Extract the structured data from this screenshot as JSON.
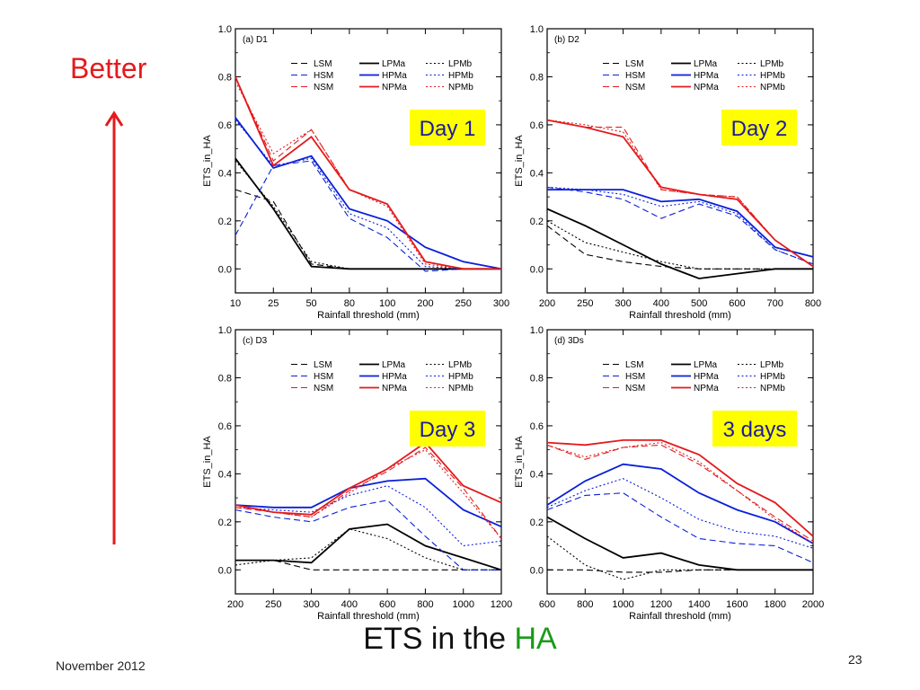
{
  "slide": {
    "better_label": "Better",
    "title_prefix": "ETS in the ",
    "title_highlight": "HA",
    "date": "November 2012",
    "page_number": "23",
    "colors": {
      "better": "#e41a1c",
      "title_highlight": "#1a9a1a",
      "badge_fill": "#ffff00",
      "badge_text": "#1a1aa0"
    }
  },
  "chart_data": [
    {
      "type": "line",
      "panel_label": "(a) D1",
      "badge": "Day 1",
      "xlabel": "Rainfall threshold (mm)",
      "ylabel": "ETS_in_HA",
      "categories": [
        "10",
        "25",
        "50",
        "80",
        "100",
        "200",
        "250",
        "300"
      ],
      "ylim": [
        -0.1,
        1.0
      ],
      "yticks": [
        "0.0",
        "0.2",
        "0.4",
        "0.6",
        "0.8",
        "1.0"
      ],
      "series": [
        {
          "name": "LSM",
          "color": "#000000",
          "style": "dash",
          "values": [
            0.33,
            0.28,
            0.02,
            0.0,
            0.0,
            0.0,
            0.0,
            0.0
          ]
        },
        {
          "name": "LPMa",
          "color": "#000000",
          "style": "solid",
          "values": [
            0.46,
            0.25,
            0.01,
            0.0,
            0.0,
            0.0,
            0.0,
            0.0
          ]
        },
        {
          "name": "LPMb",
          "color": "#000000",
          "style": "dot",
          "values": [
            0.45,
            0.26,
            0.03,
            0.0,
            0.0,
            0.0,
            0.0,
            0.0
          ]
        },
        {
          "name": "HSM",
          "color": "#0a1fd8",
          "style": "dash",
          "values": [
            0.14,
            0.43,
            0.45,
            0.21,
            0.13,
            -0.01,
            0.0,
            0.0
          ]
        },
        {
          "name": "HPMa",
          "color": "#0a1fd8",
          "style": "solid",
          "values": [
            0.63,
            0.42,
            0.47,
            0.25,
            0.2,
            0.09,
            0.03,
            0.0
          ]
        },
        {
          "name": "HPMb",
          "color": "#0a1fd8",
          "style": "dot",
          "values": [
            0.62,
            0.43,
            0.46,
            0.23,
            0.17,
            0.01,
            0.0,
            0.0
          ]
        },
        {
          "name": "NSM",
          "color": "#e41a1c",
          "style": "dash",
          "values": [
            0.8,
            0.45,
            0.58,
            0.33,
            0.27,
            0.03,
            0.0,
            0.0
          ]
        },
        {
          "name": "NPMa",
          "color": "#e41a1c",
          "style": "solid",
          "values": [
            0.8,
            0.43,
            0.55,
            0.33,
            0.27,
            0.03,
            0.0,
            0.0
          ]
        },
        {
          "name": "NPMb",
          "color": "#e41a1c",
          "style": "dot",
          "values": [
            0.78,
            0.48,
            0.58,
            0.33,
            0.26,
            0.02,
            0.0,
            0.0
          ]
        }
      ]
    },
    {
      "type": "line",
      "panel_label": "(b) D2",
      "badge": "Day 2",
      "xlabel": "Rainfall threshold (mm)",
      "ylabel": "ETS_in_HA",
      "categories": [
        "200",
        "250",
        "300",
        "400",
        "500",
        "600",
        "700",
        "800"
      ],
      "ylim": [
        -0.1,
        1.0
      ],
      "yticks": [
        "0.0",
        "0.2",
        "0.4",
        "0.6",
        "0.8",
        "1.0"
      ],
      "series": [
        {
          "name": "LSM",
          "color": "#000000",
          "style": "dash",
          "values": [
            0.18,
            0.06,
            0.03,
            0.01,
            0.0,
            0.0,
            0.0,
            0.0
          ]
        },
        {
          "name": "LPMa",
          "color": "#000000",
          "style": "solid",
          "values": [
            0.25,
            0.18,
            0.1,
            0.02,
            -0.04,
            -0.02,
            0.0,
            0.0
          ]
        },
        {
          "name": "LPMb",
          "color": "#000000",
          "style": "dot",
          "values": [
            0.2,
            0.11,
            0.07,
            0.03,
            0.0,
            0.0,
            0.0,
            0.0
          ]
        },
        {
          "name": "HSM",
          "color": "#0a1fd8",
          "style": "dash",
          "values": [
            0.34,
            0.32,
            0.29,
            0.21,
            0.27,
            0.22,
            0.08,
            0.02
          ]
        },
        {
          "name": "HPMa",
          "color": "#0a1fd8",
          "style": "solid",
          "values": [
            0.33,
            0.33,
            0.33,
            0.28,
            0.29,
            0.24,
            0.09,
            0.05
          ]
        },
        {
          "name": "HPMb",
          "color": "#0a1fd8",
          "style": "dot",
          "values": [
            0.34,
            0.33,
            0.31,
            0.26,
            0.28,
            0.23,
            0.08,
            0.02
          ]
        },
        {
          "name": "NSM",
          "color": "#e41a1c",
          "style": "dash",
          "values": [
            0.62,
            0.59,
            0.59,
            0.33,
            0.31,
            0.3,
            0.12,
            0.01
          ]
        },
        {
          "name": "NPMa",
          "color": "#e41a1c",
          "style": "solid",
          "values": [
            0.62,
            0.59,
            0.55,
            0.34,
            0.31,
            0.29,
            0.12,
            0.01
          ]
        },
        {
          "name": "NPMb",
          "color": "#e41a1c",
          "style": "dot",
          "values": [
            0.62,
            0.6,
            0.57,
            0.33,
            0.31,
            0.3,
            0.12,
            0.01
          ]
        }
      ]
    },
    {
      "type": "line",
      "panel_label": "(c) D3",
      "badge": "Day 3",
      "xlabel": "Rainfall threshold (mm)",
      "ylabel": "ETS_in_HA",
      "categories": [
        "200",
        "250",
        "300",
        "400",
        "600",
        "800",
        "1000",
        "1200"
      ],
      "ylim": [
        -0.1,
        1.0
      ],
      "yticks": [
        "0.0",
        "0.2",
        "0.4",
        "0.6",
        "0.8",
        "1.0"
      ],
      "series": [
        {
          "name": "LSM",
          "color": "#000000",
          "style": "dash",
          "values": [
            0.04,
            0.04,
            0.0,
            0.0,
            0.0,
            0.0,
            0.0,
            0.0
          ]
        },
        {
          "name": "LPMa",
          "color": "#000000",
          "style": "solid",
          "values": [
            0.04,
            0.04,
            0.03,
            0.17,
            0.19,
            0.1,
            0.05,
            0.0
          ]
        },
        {
          "name": "LPMb",
          "color": "#000000",
          "style": "dot",
          "values": [
            0.02,
            0.04,
            0.05,
            0.17,
            0.13,
            0.05,
            0.0,
            0.0
          ]
        },
        {
          "name": "HSM",
          "color": "#0a1fd8",
          "style": "dash",
          "values": [
            0.25,
            0.22,
            0.2,
            0.26,
            0.29,
            0.14,
            0.0,
            0.0
          ]
        },
        {
          "name": "HPMa",
          "color": "#0a1fd8",
          "style": "solid",
          "values": [
            0.27,
            0.26,
            0.26,
            0.34,
            0.37,
            0.38,
            0.25,
            0.18
          ]
        },
        {
          "name": "HPMb",
          "color": "#0a1fd8",
          "style": "dot",
          "values": [
            0.26,
            0.25,
            0.24,
            0.31,
            0.35,
            0.26,
            0.1,
            0.12
          ]
        },
        {
          "name": "NSM",
          "color": "#e41a1c",
          "style": "dash",
          "values": [
            0.26,
            0.24,
            0.22,
            0.33,
            0.41,
            0.51,
            0.34,
            0.13
          ]
        },
        {
          "name": "NPMa",
          "color": "#e41a1c",
          "style": "solid",
          "values": [
            0.27,
            0.24,
            0.23,
            0.34,
            0.42,
            0.53,
            0.35,
            0.28
          ]
        },
        {
          "name": "NPMb",
          "color": "#e41a1c",
          "style": "dot",
          "values": [
            0.27,
            0.24,
            0.22,
            0.32,
            0.42,
            0.5,
            0.32,
            0.13
          ]
        }
      ]
    },
    {
      "type": "line",
      "panel_label": "(d) 3Ds",
      "badge": "3 days",
      "xlabel": "Rainfall threshold (mm)",
      "ylabel": "ETS_in_HA",
      "categories": [
        "600",
        "800",
        "1000",
        "1200",
        "1400",
        "1600",
        "1800",
        "2000"
      ],
      "ylim": [
        -0.1,
        1.0
      ],
      "yticks": [
        "0.0",
        "0.2",
        "0.4",
        "0.6",
        "0.8",
        "1.0"
      ],
      "series": [
        {
          "name": "LSM",
          "color": "#000000",
          "style": "dash",
          "values": [
            0.0,
            0.0,
            -0.01,
            -0.01,
            0.0,
            0.0,
            0.0,
            0.0
          ]
        },
        {
          "name": "LPMa",
          "color": "#000000",
          "style": "solid",
          "values": [
            0.22,
            0.13,
            0.05,
            0.07,
            0.02,
            0.0,
            0.0,
            0.0
          ]
        },
        {
          "name": "LPMb",
          "color": "#000000",
          "style": "dot",
          "values": [
            0.14,
            0.02,
            -0.04,
            0.0,
            0.0,
            0.0,
            0.0,
            0.0
          ]
        },
        {
          "name": "HSM",
          "color": "#0a1fd8",
          "style": "dash",
          "values": [
            0.25,
            0.31,
            0.32,
            0.22,
            0.13,
            0.11,
            0.1,
            0.03
          ]
        },
        {
          "name": "HPMa",
          "color": "#0a1fd8",
          "style": "solid",
          "values": [
            0.27,
            0.37,
            0.44,
            0.42,
            0.32,
            0.25,
            0.2,
            0.11
          ]
        },
        {
          "name": "HPMb",
          "color": "#0a1fd8",
          "style": "dot",
          "values": [
            0.26,
            0.33,
            0.38,
            0.3,
            0.21,
            0.16,
            0.14,
            0.09
          ]
        },
        {
          "name": "NSM",
          "color": "#e41a1c",
          "style": "dash",
          "values": [
            0.52,
            0.46,
            0.51,
            0.52,
            0.44,
            0.33,
            0.22,
            0.12
          ]
        },
        {
          "name": "NPMa",
          "color": "#e41a1c",
          "style": "solid",
          "values": [
            0.53,
            0.52,
            0.54,
            0.54,
            0.48,
            0.36,
            0.28,
            0.14
          ]
        },
        {
          "name": "NPMb",
          "color": "#e41a1c",
          "style": "dot",
          "values": [
            0.52,
            0.47,
            0.51,
            0.53,
            0.45,
            0.33,
            0.21,
            0.11
          ]
        }
      ]
    }
  ]
}
